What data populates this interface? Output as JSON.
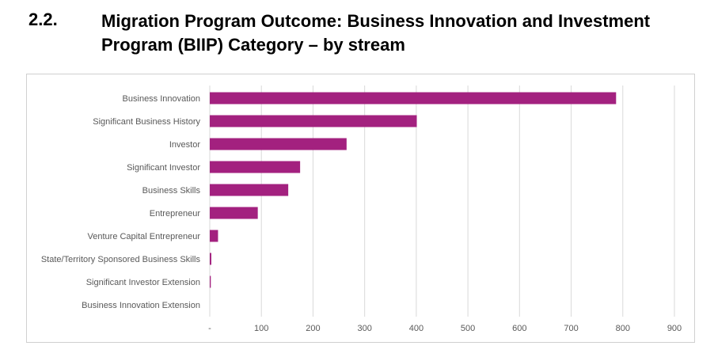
{
  "heading": {
    "number": "2.2.",
    "title": "Migration Program Outcome: Business Innovation and Investment Program (BIIP) Category – by stream"
  },
  "colors": {
    "bar": "#a3217f",
    "grid": "#d9d9d9"
  },
  "chart_data": {
    "type": "bar",
    "orientation": "horizontal",
    "title": "",
    "xlabel": "",
    "ylabel": "",
    "xlim": [
      0,
      900
    ],
    "grid": true,
    "legend": "none",
    "x_ticks": [
      "-",
      "100",
      "200",
      "300",
      "400",
      "500",
      "600",
      "700",
      "800",
      "900"
    ],
    "categories": [
      "Business Innovation",
      "Significant Business History",
      "Investor",
      "Significant Investor",
      "Business Skills",
      "Entrepreneur",
      "Venture Capital Entrepreneur",
      "State/Territory Sponsored Business Skills",
      "Significant Investor Extension",
      "Business Innovation Extension"
    ],
    "values": [
      787,
      401,
      265,
      175,
      152,
      93,
      16,
      3,
      2,
      0
    ]
  }
}
